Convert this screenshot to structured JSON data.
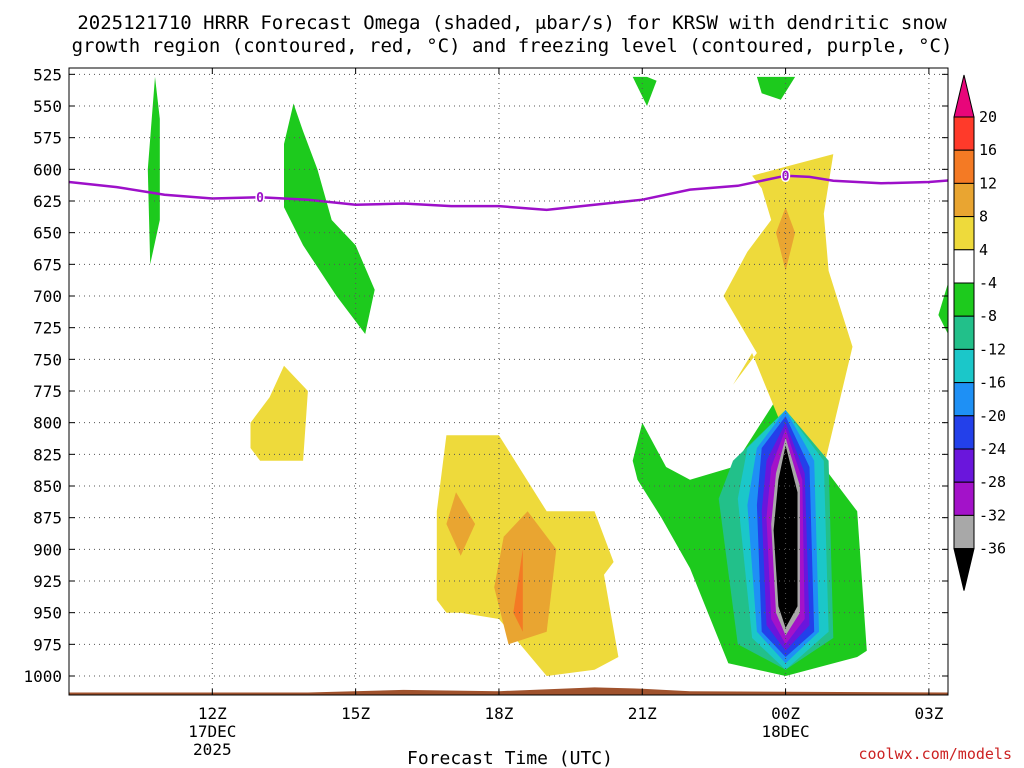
{
  "chart_data": {
    "type": "heatmap",
    "title_lines": [
      "2025121710 HRRR Forecast Omega (shaded, μbar/s) for KRSW with dendritic snow",
      "growth region (contoured, red, °C) and freezing level (contoured, purple, °C)"
    ],
    "xlabel": "Forecast Time (UTC)",
    "credit": "coolwx.com/models",
    "y_ticks": [
      525,
      550,
      575,
      600,
      625,
      650,
      675,
      700,
      725,
      750,
      775,
      800,
      825,
      850,
      875,
      900,
      925,
      950,
      975,
      1000
    ],
    "ylim_hpa": [
      520,
      1015
    ],
    "xlim_hours": [
      -3.0,
      15.4
    ],
    "x_ticks": [
      {
        "hour": 0,
        "lines": [
          "12Z",
          "17DEC",
          "2025"
        ]
      },
      {
        "hour": 3,
        "lines": [
          "15Z"
        ]
      },
      {
        "hour": 6,
        "lines": [
          "18Z"
        ]
      },
      {
        "hour": 9,
        "lines": [
          "21Z"
        ]
      },
      {
        "hour": 12,
        "lines": [
          "00Z",
          "18DEC"
        ]
      },
      {
        "hour": 15,
        "lines": [
          "03Z"
        ]
      }
    ],
    "colorbar": {
      "labels": [
        "20",
        "16",
        "12",
        "8",
        "4",
        "-4",
        "-8",
        "-12",
        "-16",
        "-20",
        "-24",
        "-28",
        "-32",
        "-36"
      ],
      "colors": [
        "#e8067a",
        "#ff3a2a",
        "#f47a24",
        "#e9a531",
        "#eeda3b",
        "#ffffff",
        "#1dca1d",
        "#22c08a",
        "#1bc7c9",
        "#1e90f5",
        "#2340ea",
        "#6a16dc",
        "#a312c9",
        "#a8a8a8",
        "#000000"
      ]
    },
    "freezing_level": {
      "label": "0",
      "color": "#9d10c9",
      "hours": [
        -3.0,
        -2.0,
        -1.0,
        0.0,
        1.0,
        2.0,
        3.0,
        4.0,
        5.0,
        6.0,
        7.0,
        8.0,
        9.0,
        10.0,
        11.0,
        12.0,
        12.5,
        13.0,
        14.0,
        15.0,
        16.0
      ],
      "pressure_hpa": [
        610,
        614,
        620,
        623,
        622,
        624,
        628,
        627,
        629,
        629,
        632,
        628,
        624,
        616,
        613,
        605,
        606,
        609,
        611,
        610,
        607
      ]
    },
    "omega_areas": [
      {
        "value": -6,
        "color": "#1dca1d",
        "hours": [
          -1.2,
          -1.1,
          -1.1,
          -1.3,
          -1.35,
          -1.2
        ],
        "pressure_hpa": [
          527,
          560,
          640,
          675,
          600,
          527
        ]
      },
      {
        "value": -6,
        "color": "#1dca1d",
        "hours": [
          1.7,
          1.9,
          2.2,
          2.5,
          3.0,
          3.4,
          3.2,
          2.6,
          1.9,
          1.5,
          1.5
        ],
        "pressure_hpa": [
          548,
          570,
          600,
          640,
          660,
          695,
          730,
          700,
          660,
          630,
          580
        ]
      },
      {
        "value": -6,
        "color": "#1dca1d",
        "hours": [
          8.8,
          9.1,
          9.3,
          9.1
        ],
        "pressure_hpa": [
          527,
          527,
          530,
          550
        ]
      },
      {
        "value": -6,
        "color": "#1dca1d",
        "hours": [
          11.4,
          12.2,
          11.9,
          11.5
        ],
        "pressure_hpa": [
          527,
          527,
          545,
          540
        ]
      },
      {
        "value": -6,
        "color": "#1dca1d",
        "hours": [
          15.4,
          15.4,
          15.2
        ],
        "pressure_hpa": [
          690,
          730,
          715
        ]
      },
      {
        "value": -6,
        "color": "#1dca1d",
        "hours": [
          9.0,
          9.5,
          10.0,
          10.9,
          12.0,
          12.7,
          13.5,
          13.7,
          13.5,
          12.0,
          10.8,
          10.0,
          9.4,
          8.9,
          8.8
        ],
        "pressure_hpa": [
          800,
          835,
          845,
          835,
          770,
          830,
          870,
          980,
          985,
          1000,
          990,
          915,
          875,
          845,
          830
        ]
      },
      {
        "value": 6,
        "color": "#eeda3b",
        "hours": [
          1.5,
          2.0,
          1.9,
          1.5,
          1.0,
          0.8,
          0.8,
          1.2
        ],
        "pressure_hpa": [
          755,
          775,
          830,
          830,
          830,
          820,
          800,
          780
        ]
      },
      {
        "value": 6,
        "color": "#eeda3b",
        "hours": [
          4.9,
          6.0,
          7.0,
          8.0,
          8.4,
          8.2,
          8.5,
          8.0,
          7.0,
          6.0,
          5.2,
          4.9,
          4.7,
          4.7
        ],
        "pressure_hpa": [
          810,
          810,
          870,
          870,
          910,
          920,
          985,
          995,
          1000,
          955,
          950,
          950,
          940,
          870
        ]
      },
      {
        "value": 6,
        "color": "#eeda3b",
        "hours": [
          12.0,
          13.0,
          12.8,
          12.9,
          13.4,
          12.8,
          12.0,
          11.3,
          10.9,
          11.4,
          10.7,
          11.2,
          11.7,
          11.5,
          11.3
        ],
        "pressure_hpa": [
          598,
          588,
          635,
          680,
          740,
          835,
          810,
          745,
          770,
          745,
          700,
          665,
          640,
          615,
          605
        ]
      },
      {
        "value": 10,
        "color": "#e9a531",
        "hours": [
          12.0,
          12.2,
          12.0,
          11.8
        ],
        "pressure_hpa": [
          630,
          650,
          680,
          650
        ]
      },
      {
        "value": 10,
        "color": "#e9a531",
        "hours": [
          5.1,
          5.5,
          5.2,
          4.9
        ],
        "pressure_hpa": [
          855,
          880,
          905,
          880
        ]
      },
      {
        "value": 10,
        "color": "#e9a531",
        "hours": [
          6.6,
          7.2,
          7.0,
          6.2,
          5.9,
          6.1
        ],
        "pressure_hpa": [
          870,
          900,
          965,
          975,
          930,
          890
        ]
      },
      {
        "value": 14,
        "color": "#f47a24",
        "hours": [
          6.5,
          6.5,
          6.3
        ],
        "pressure_hpa": [
          900,
          965,
          950
        ]
      },
      {
        "value": -10,
        "color": "#22c08a",
        "hours": [
          10.9,
          12.0,
          12.9,
          13.0,
          12.0,
          11.0,
          10.6
        ],
        "pressure_hpa": [
          830,
          790,
          830,
          970,
          995,
          975,
          860
        ]
      },
      {
        "value": -14,
        "color": "#1bc7c9",
        "hours": [
          11.2,
          12.0,
          12.8,
          12.9,
          12.0,
          11.3,
          11.0
        ],
        "pressure_hpa": [
          820,
          790,
          830,
          965,
          995,
          970,
          860
        ]
      },
      {
        "value": -18,
        "color": "#1e90f5",
        "hours": [
          11.4,
          12.0,
          12.6,
          12.7,
          12.0,
          11.4,
          11.2
        ],
        "pressure_hpa": [
          820,
          790,
          830,
          965,
          990,
          965,
          865
        ]
      },
      {
        "value": -22,
        "color": "#2340ea",
        "hours": [
          11.5,
          12.0,
          12.5,
          12.6,
          12.0,
          11.5,
          11.4
        ],
        "pressure_hpa": [
          820,
          795,
          835,
          965,
          985,
          965,
          865
        ]
      },
      {
        "value": -26,
        "color": "#6a16dc",
        "hours": [
          11.6,
          12.0,
          12.4,
          12.5,
          12.0,
          11.6,
          11.5
        ],
        "pressure_hpa": [
          830,
          800,
          840,
          960,
          980,
          960,
          870
        ]
      },
      {
        "value": -30,
        "color": "#a312c9",
        "hours": [
          11.7,
          12.0,
          12.35,
          12.4,
          12.0,
          11.7,
          11.6
        ],
        "pressure_hpa": [
          835,
          805,
          845,
          955,
          975,
          955,
          875
        ]
      },
      {
        "value": -34,
        "color": "#a8a8a8",
        "hours": [
          11.8,
          12.0,
          12.3,
          12.3,
          12.0,
          11.8,
          11.7
        ],
        "pressure_hpa": [
          840,
          812,
          850,
          950,
          968,
          950,
          880
        ]
      },
      {
        "value": -38,
        "color": "#000000",
        "hours": [
          11.85,
          12.0,
          12.25,
          12.25,
          12.0,
          11.85,
          11.75
        ],
        "pressure_hpa": [
          845,
          818,
          855,
          945,
          962,
          945,
          885
        ]
      }
    ],
    "ground": {
      "color": "#a0522d",
      "hours": [
        -3.0,
        2.0,
        4.0,
        6.0,
        8.0,
        9.0,
        10.0,
        15.4
      ],
      "pressure_hpa": [
        1013,
        1013,
        1011,
        1012,
        1009,
        1010,
        1012,
        1013
      ]
    }
  }
}
